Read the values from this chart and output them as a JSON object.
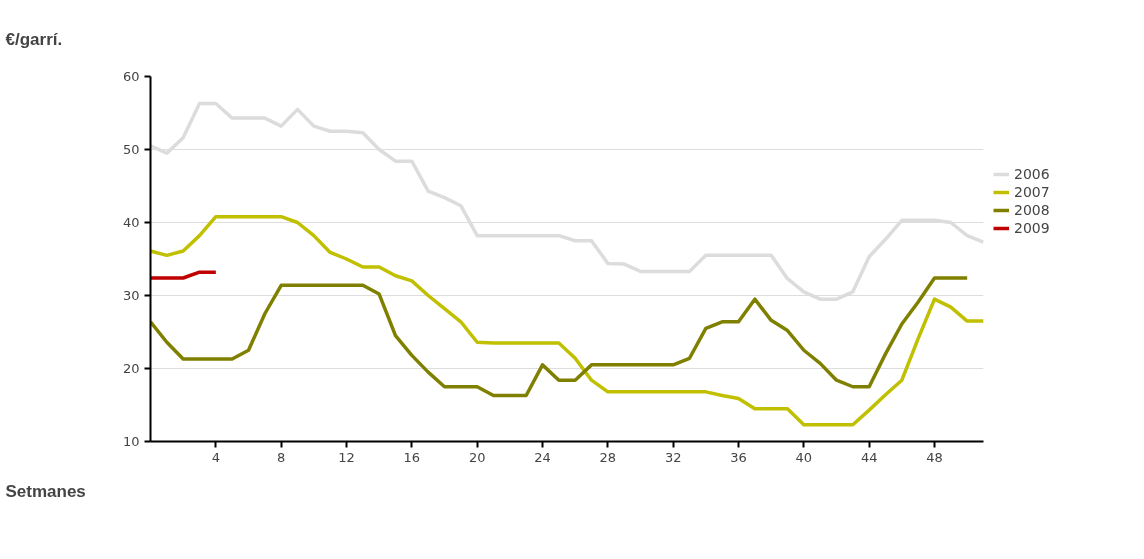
{
  "chart_data": {
    "type": "line",
    "title": "€/garrí.",
    "xlabel": "Setmanes",
    "x": [
      0,
      1,
      2,
      3,
      4,
      5,
      6,
      7,
      8,
      9,
      10,
      11,
      12,
      13,
      14,
      15,
      16,
      17,
      18,
      19,
      20,
      21,
      22,
      23,
      24,
      25,
      26,
      27,
      28,
      29,
      30,
      31,
      32,
      33,
      34,
      35,
      36,
      37,
      38,
      39,
      40,
      41,
      42,
      43,
      44,
      45,
      46,
      47,
      48,
      49,
      50,
      51
    ],
    "series": [
      {
        "name": "2006",
        "color": "#dcdcdc",
        "values": [
          50.5,
          49.5,
          51.6,
          56.3,
          56.3,
          54.3,
          54.3,
          54.3,
          53.2,
          55.5,
          53.2,
          52.5,
          52.5,
          52.3,
          50,
          48.4,
          48.4,
          44.3,
          43.4,
          42.3,
          38.2,
          38.2,
          38.2,
          38.2,
          38.2,
          38.2,
          37.5,
          37.5,
          34.4,
          34.3,
          33.3,
          33.3,
          33.3,
          33.3,
          35.5,
          35.5,
          35.5,
          35.5,
          35.5,
          32.3,
          30.5,
          29.5,
          29.5,
          30.5,
          35.3,
          37.7,
          40.3,
          40.3,
          40.3,
          40,
          38.2,
          37.3
        ]
      },
      {
        "name": "2007",
        "color": "#c0c000",
        "values": [
          36.1,
          35.5,
          36.1,
          38.2,
          40.8,
          40.8,
          40.8,
          40.8,
          40.8,
          40,
          38.2,
          35.9,
          35,
          33.9,
          33.9,
          32.7,
          32,
          30,
          28.2,
          26.4,
          23.6,
          23.5,
          23.5,
          23.5,
          23.5,
          23.5,
          21.4,
          18.4,
          16.8,
          16.8,
          16.8,
          16.8,
          16.8,
          16.8,
          16.8,
          16.3,
          15.9,
          14.5,
          14.5,
          14.5,
          12.3,
          12.3,
          12.3,
          12.3,
          14.3,
          16.4,
          18.4,
          24.1,
          29.5,
          28.4,
          26.5,
          26.5
        ]
      },
      {
        "name": "2008",
        "color": "#808000",
        "values": [
          26.4,
          23.6,
          21.3,
          21.3,
          21.3,
          21.3,
          22.5,
          27.5,
          31.4,
          31.4,
          31.4,
          31.4,
          31.4,
          31.4,
          30.2,
          24.5,
          21.8,
          19.5,
          17.5,
          17.5,
          17.5,
          16.3,
          16.3,
          16.3,
          20.5,
          18.4,
          18.4,
          20.5,
          20.5,
          20.5,
          20.5,
          20.5,
          20.5,
          21.4,
          25.5,
          26.4,
          26.4,
          29.5,
          26.6,
          25.2,
          22.5,
          20.7,
          18.4,
          17.5,
          17.5,
          22,
          26.1,
          29.1,
          32.4,
          32.4,
          32.4,
          null
        ]
      },
      {
        "name": "2009",
        "color": "#c00000",
        "values": [
          32.4,
          32.4,
          32.4,
          33.2,
          33.2,
          null,
          null,
          null,
          null,
          null,
          null,
          null,
          null,
          null,
          null,
          null,
          null,
          null,
          null,
          null,
          null,
          null,
          null,
          null,
          null,
          null,
          null,
          null,
          null,
          null,
          null,
          null,
          null,
          null,
          null,
          null,
          null,
          null,
          null,
          null,
          null,
          null,
          null,
          null,
          null,
          null,
          null,
          null,
          null,
          null,
          null,
          null
        ]
      }
    ],
    "xlim": [
      0,
      51
    ],
    "xticks": [
      4,
      8,
      12,
      16,
      20,
      24,
      28,
      32,
      36,
      40,
      44,
      48
    ],
    "ylim": [
      10,
      60
    ],
    "yticks": [
      10,
      20,
      30,
      40,
      50,
      60
    ],
    "grid": "y",
    "legend": "right",
    "marker": "none",
    "line_style": "solid"
  }
}
